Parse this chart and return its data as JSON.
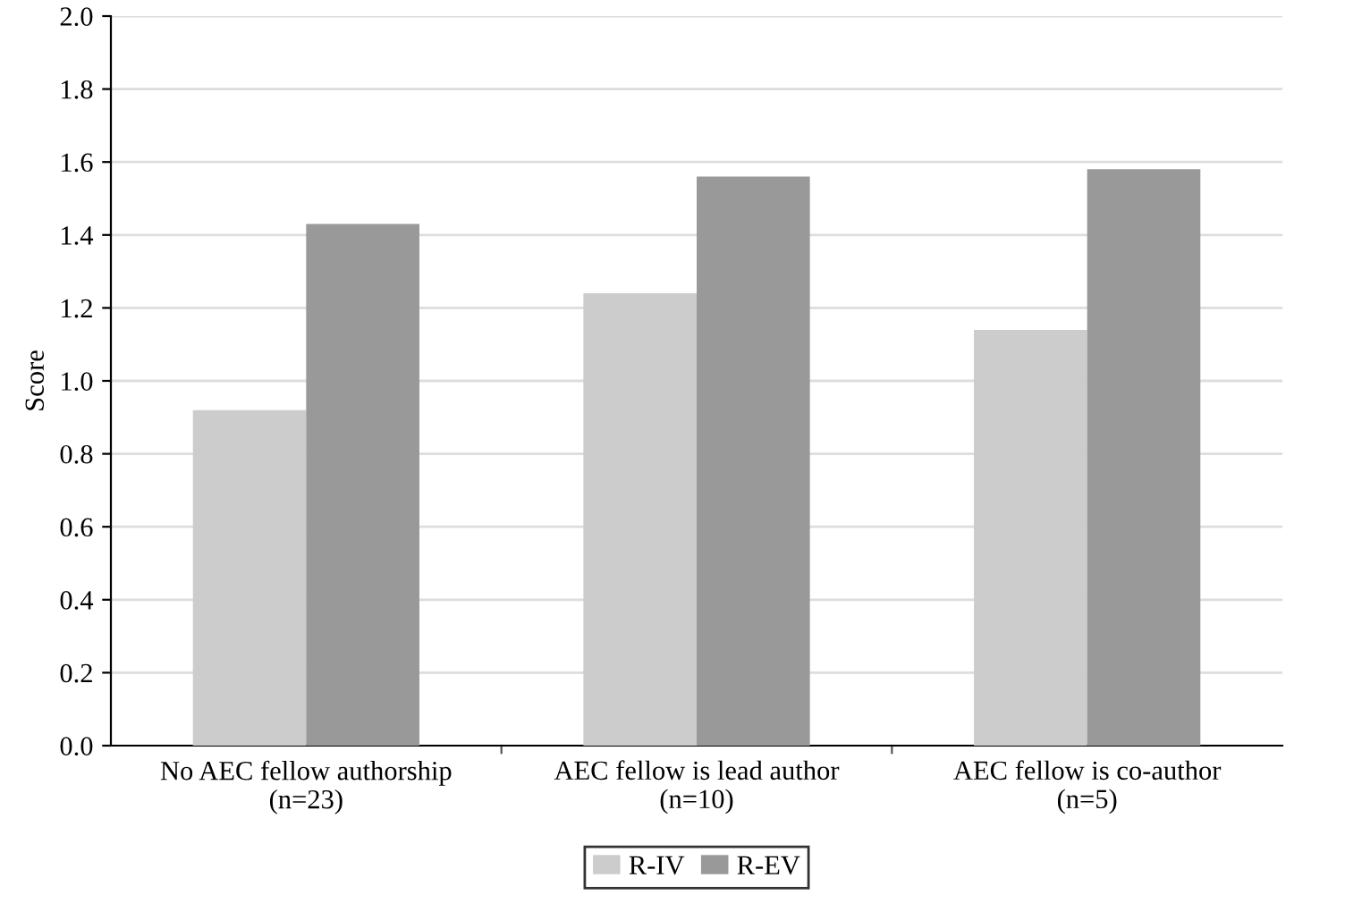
{
  "chart_data": {
    "type": "bar",
    "ylabel": "Score",
    "categories": [
      "No AEC fellow authorship\n(n=23)",
      "AEC fellow is lead author\n(n=10)",
      "AEC fellow is co-author\n(n=5)"
    ],
    "series": [
      {
        "name": "R-IV",
        "color": "#cccccc",
        "values": [
          0.92,
          1.24,
          1.14
        ]
      },
      {
        "name": "R-EV",
        "color": "#989998",
        "values": [
          1.43,
          1.56,
          1.58
        ]
      }
    ],
    "ylim": [
      0,
      2.0
    ],
    "yticks": [
      {
        "value": 0,
        "label": "0.0"
      },
      {
        "value": 0.2,
        "label": "0.2"
      },
      {
        "value": 0.4,
        "label": "0.4"
      },
      {
        "value": 0.6,
        "label": "0.6"
      },
      {
        "value": 0.8,
        "label": "0.8"
      },
      {
        "value": 1.0,
        "label": "1.0"
      },
      {
        "value": 1.2,
        "label": "1.2"
      },
      {
        "value": 1.4,
        "label": "1.4"
      },
      {
        "value": 1.6,
        "label": "1.6"
      },
      {
        "value": 1.8,
        "label": "1.8"
      },
      {
        "value": 2.0,
        "label": "2.0"
      }
    ],
    "grid": "y",
    "legend": "bottom"
  }
}
